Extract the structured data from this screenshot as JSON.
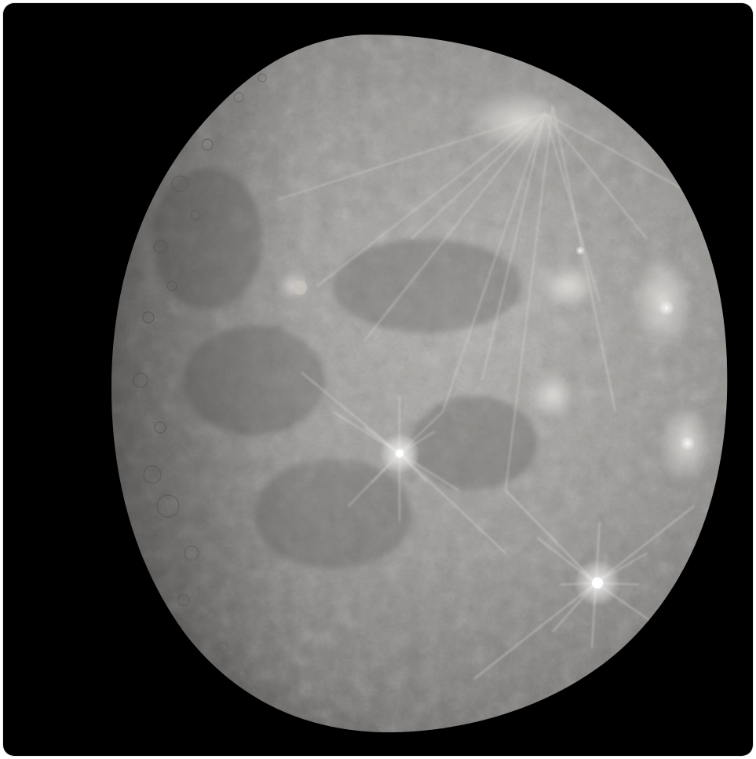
{
  "image": {
    "subject": "",
    "colors": {
      "background": "#000000",
      "frame": "#ffffff",
      "surface_light": "#b8b6b3",
      "surface_mid": "#8c8a87",
      "surface_dark": "#4a4846",
      "ray_highlight": "#ffffff"
    }
  }
}
